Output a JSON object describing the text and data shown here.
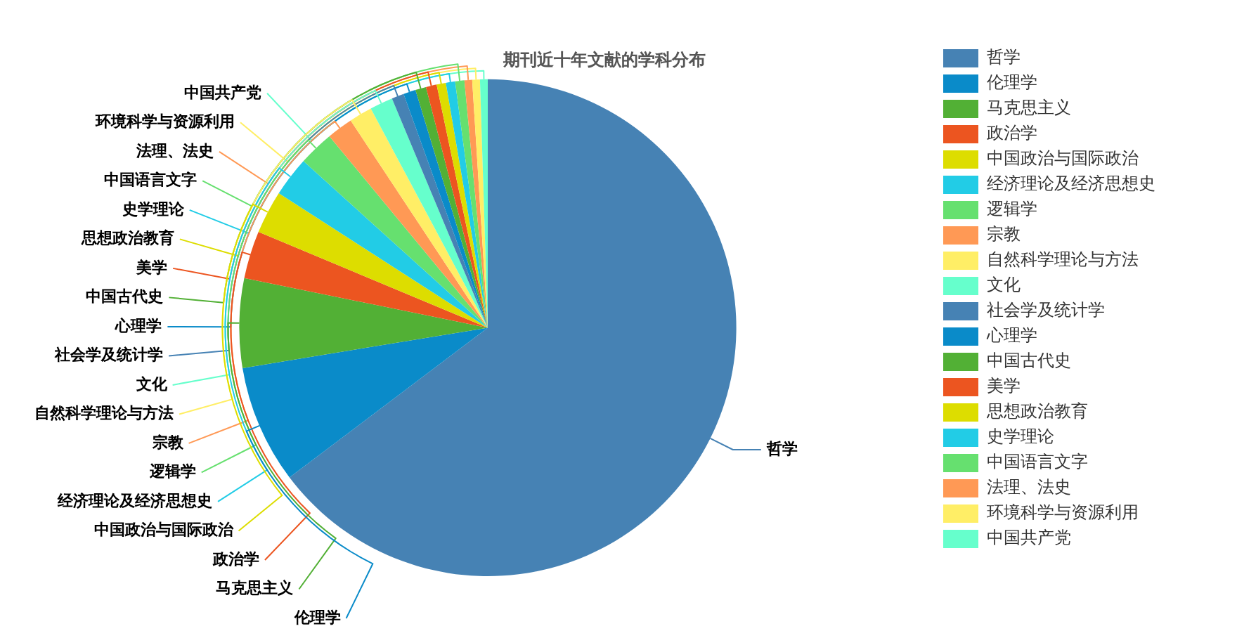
{
  "chart_data": {
    "type": "pie",
    "title": "期刊近十年文献的学科分布",
    "categories": [
      "哲学",
      "伦理学",
      "马克思主义",
      "政治学",
      "中国政治与国际政治",
      "经济理论及经济思想史",
      "逻辑学",
      "宗教",
      "自然科学理论与方法",
      "文化",
      "社会学及统计学",
      "心理学",
      "中国古代史",
      "美学",
      "思想政治教育",
      "史学理论",
      "中国语言文字",
      "法理、法史",
      "环境科学与资源利用",
      "中国共产党"
    ],
    "values": [
      64.7,
      7.7,
      5.8,
      3.1,
      2.8,
      2.6,
      2.3,
      1.7,
      1.5,
      1.5,
      0.8,
      0.8,
      0.7,
      0.7,
      0.6,
      0.6,
      0.6,
      0.5,
      0.5,
      0.5
    ],
    "colors": [
      "#4682b4",
      "#0a8bc9",
      "#52b035",
      "#ec5520",
      "#dddd00",
      "#22cce6",
      "#66e06f",
      "#ff9955",
      "#ffee66",
      "#66ffcc",
      "#4682b4",
      "#0a8bc9",
      "#52b035",
      "#ec5520",
      "#dddd00",
      "#22cce6",
      "#66e06f",
      "#ff9955",
      "#ffee66",
      "#66ffcc"
    ],
    "legend": "right"
  }
}
